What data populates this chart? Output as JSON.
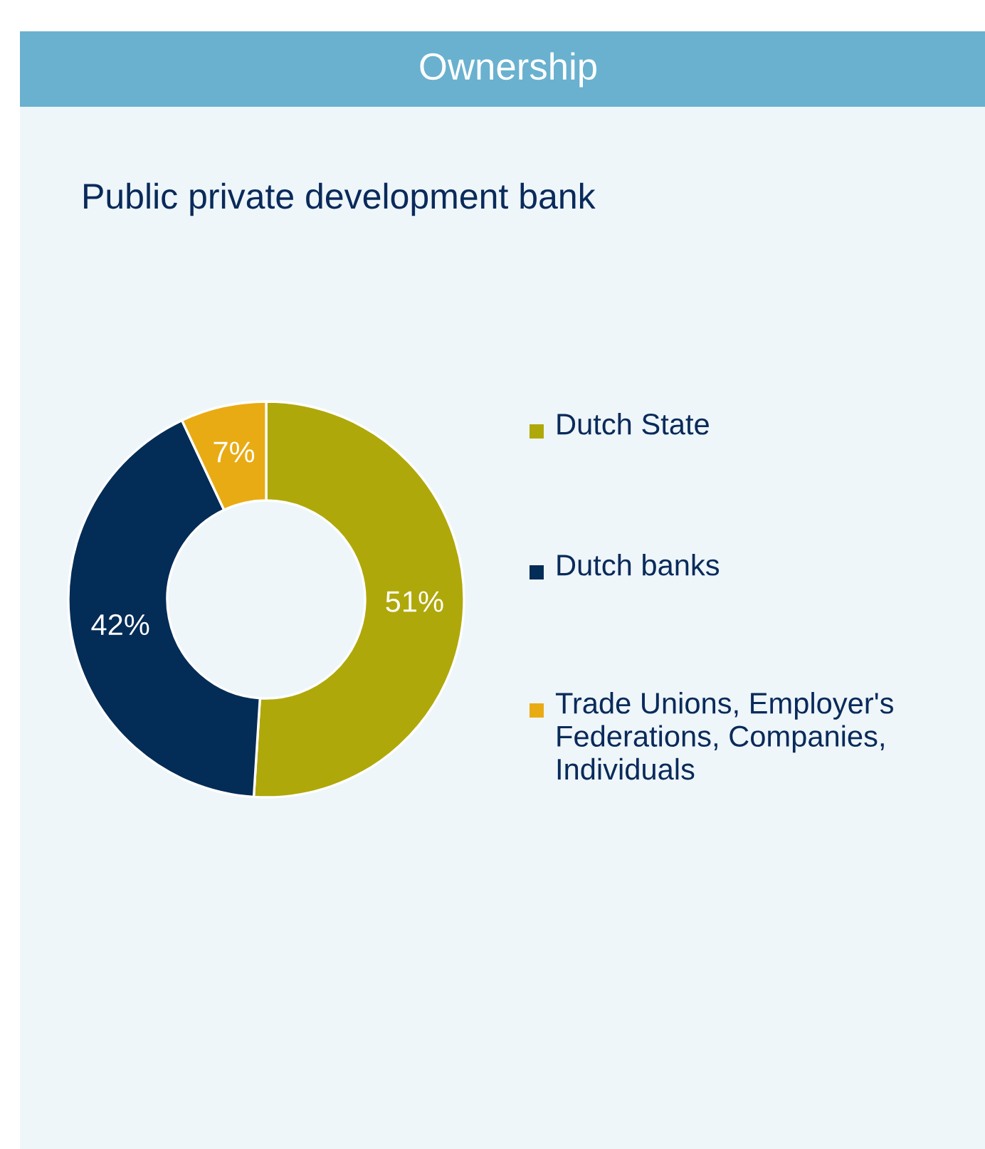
{
  "chart_data": {
    "type": "donut",
    "title": "Ownership",
    "subtitle": "Public private development bank",
    "categories": [
      "Dutch State",
      "Dutch banks",
      "Trade Unions, Employer's Federations, Companies, Individuals"
    ],
    "values": [
      51,
      42,
      7
    ],
    "colors": [
      "#afa80a",
      "#032c57",
      "#e9ab14"
    ],
    "value_labels": [
      "51%",
      "42%",
      "7%"
    ],
    "legend": "right"
  }
}
